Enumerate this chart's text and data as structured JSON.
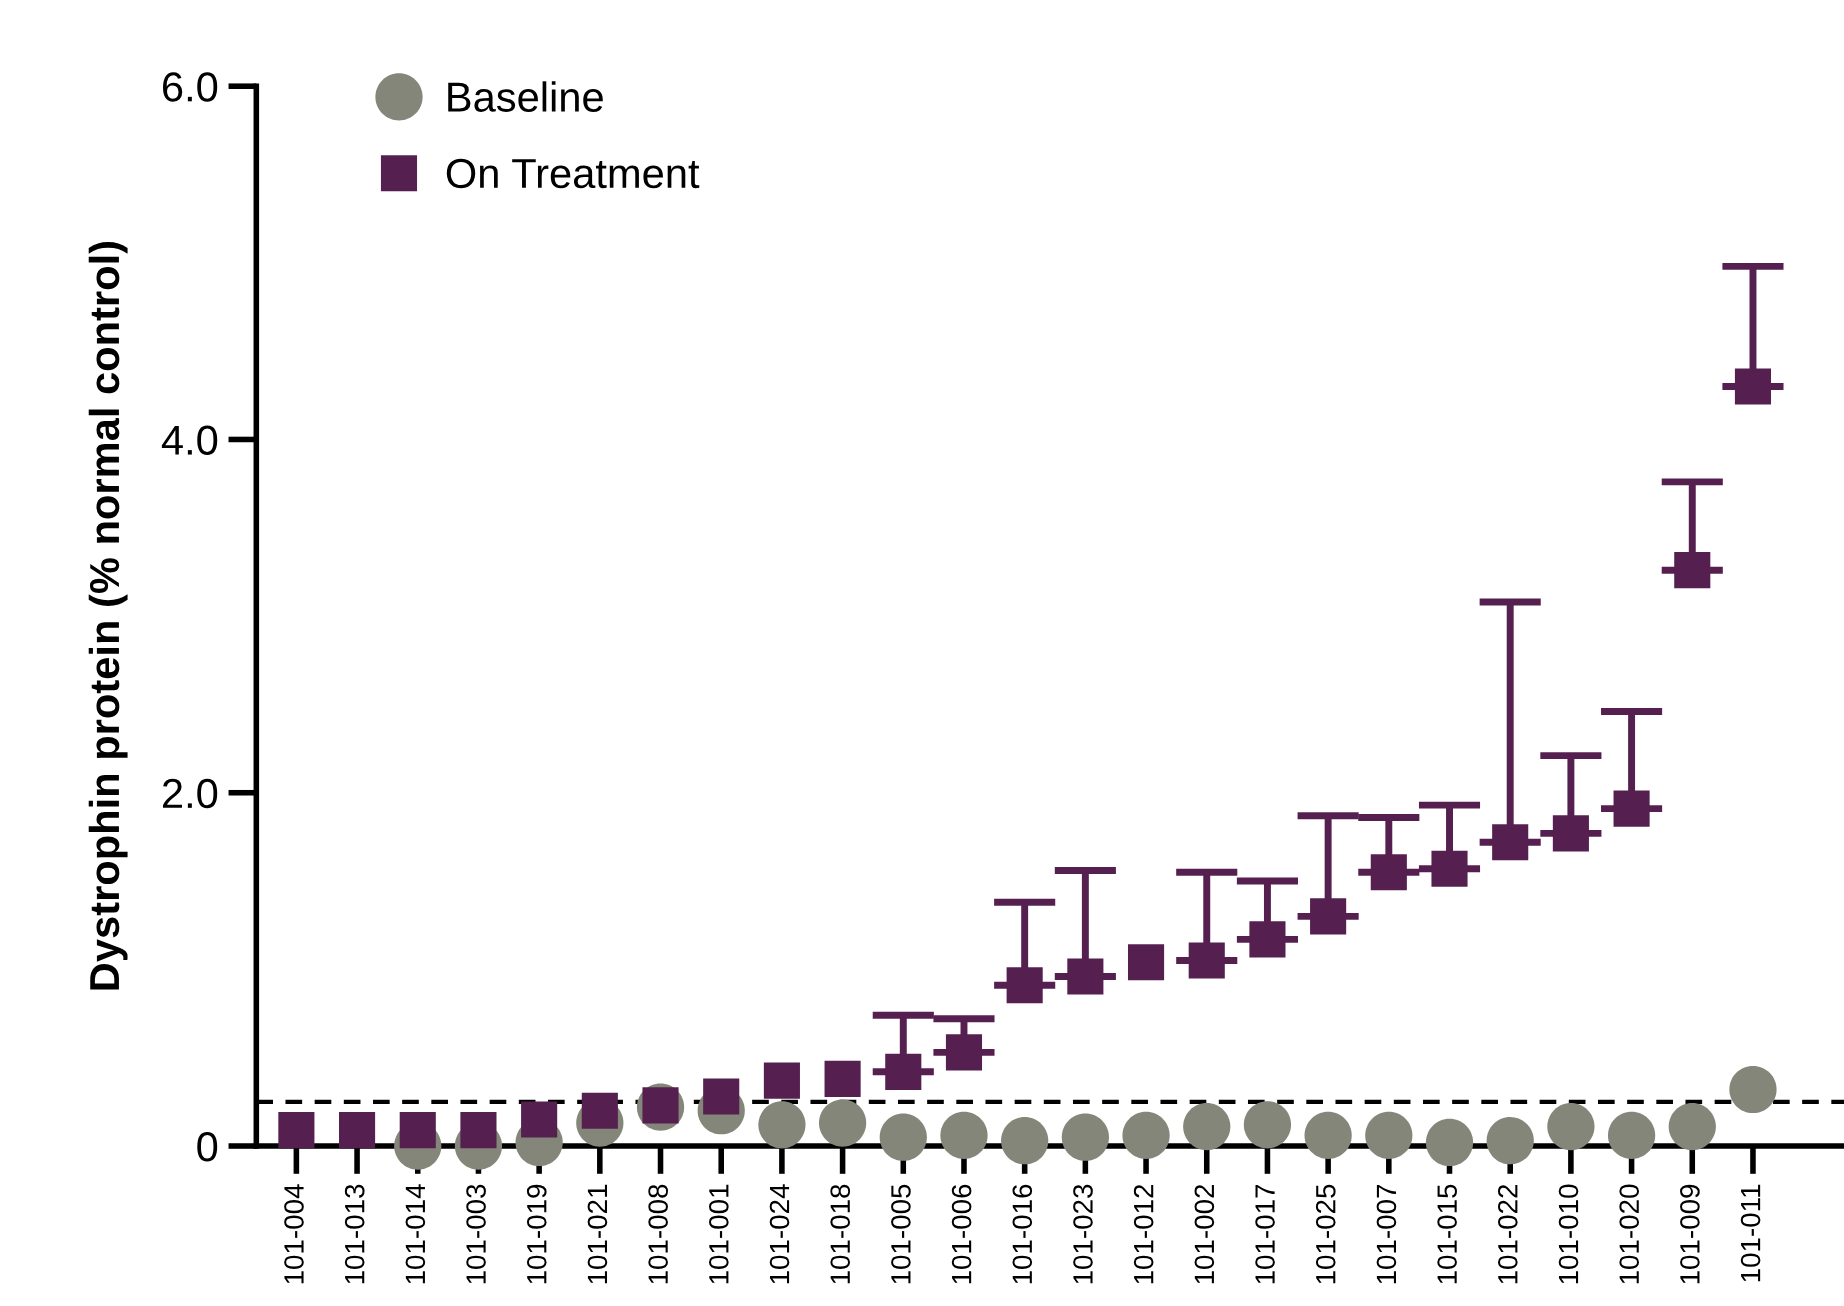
{
  "chart_data": {
    "type": "scatter",
    "ylabel": "Dystrophin protein (% normal control)",
    "categories": [
      "101-004",
      "101-013",
      "101-014",
      "101-003",
      "101-019",
      "101-021",
      "101-008",
      "101-001",
      "101-024",
      "101-018",
      "101-005",
      "101-006",
      "101-016",
      "101-023",
      "101-012",
      "101-002",
      "101-017",
      "101-025",
      "101-007",
      "101-015",
      "101-022",
      "101-010",
      "101-020",
      "101-009",
      "101-011"
    ],
    "series": [
      {
        "name": "Baseline",
        "color": "#85867a",
        "marker": "circle",
        "values": [
          null,
          null,
          0.0,
          0.0,
          0.02,
          0.13,
          0.22,
          0.2,
          0.12,
          0.13,
          0.05,
          0.06,
          0.03,
          0.05,
          0.06,
          0.11,
          0.12,
          0.06,
          0.06,
          0.02,
          0.03,
          0.11,
          0.06,
          0.11,
          0.32
        ]
      },
      {
        "name": "On Treatment",
        "color": "#55204f",
        "marker": "square",
        "values": [
          0.09,
          0.09,
          0.09,
          0.09,
          0.15,
          0.2,
          0.23,
          0.28,
          0.37,
          0.38,
          0.42,
          0.53,
          0.91,
          0.96,
          1.04,
          1.05,
          1.17,
          1.3,
          1.55,
          1.57,
          1.72,
          1.77,
          1.91,
          3.26,
          4.3
        ],
        "errors": [
          null,
          null,
          null,
          null,
          null,
          null,
          null,
          null,
          null,
          null,
          [
            0.42,
            0.74
          ],
          [
            0.53,
            0.72
          ],
          [
            0.91,
            1.38
          ],
          [
            0.96,
            1.56
          ],
          null,
          [
            1.05,
            1.55
          ],
          [
            1.17,
            1.5
          ],
          [
            1.3,
            1.87
          ],
          [
            1.55,
            1.86
          ],
          [
            1.57,
            1.93
          ],
          [
            1.72,
            3.08
          ],
          [
            1.77,
            2.21
          ],
          [
            1.91,
            2.46
          ],
          [
            3.26,
            3.76
          ],
          [
            4.3,
            4.98
          ]
        ]
      }
    ],
    "ylim": [
      0,
      6
    ],
    "yticks": [
      0,
      {
        "value": 2,
        "label": "2.0"
      },
      {
        "value": 4,
        "label": "4.0"
      },
      {
        "value": 6,
        "label": "6.0"
      }
    ],
    "ref_lines": [
      {
        "axis": "y",
        "value": 0.25,
        "line_style": "dashed",
        "color": "#000000"
      }
    ],
    "grid": false,
    "legend": "top left"
  }
}
